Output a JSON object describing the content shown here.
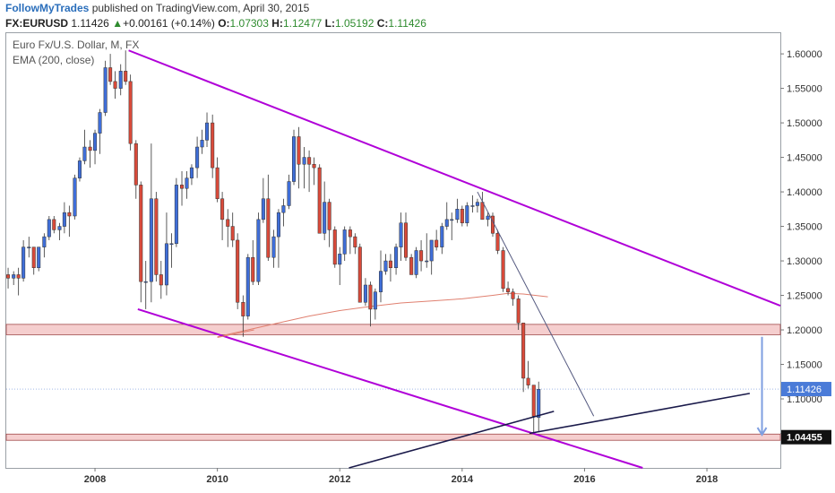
{
  "header": {
    "brand": "FollowMyTrades",
    "published": " published on TradingView.com, April 30, 2015",
    "symbol": "FX:EURUSD",
    "last": "1.11426",
    "change_arrow": "▲",
    "change": "+0.00161 (+0.14%)",
    "o_label": "O:",
    "o_val": "1.07303",
    "h_label": "H:",
    "h_val": "1.12477",
    "l_label": "L:",
    "l_val": "1.05192",
    "c_label": "C:",
    "c_val": "1.11426"
  },
  "legend": {
    "instrument": "Euro Fx/U.S. Dollar, M, FX",
    "indicator": "EMA (200, close)"
  },
  "colors": {
    "up": "#3f6ed8",
    "down": "#d94a3a",
    "ema": "#e08070",
    "channel": "#b000d8",
    "trend": "#1a1a4a",
    "zone": "#f3c6c6",
    "arrow": "#7f9fe0"
  },
  "chart_data": {
    "type": "candlestick",
    "timeframe": "monthly",
    "xlabels": [
      "2008",
      "2010",
      "2012",
      "2014",
      "2016",
      "2018"
    ],
    "yticks": [
      "1.60000",
      "1.55000",
      "1.50000",
      "1.45000",
      "1.40000",
      "1.35000",
      "1.30000",
      "1.25000",
      "1.20000",
      "1.15000",
      "1.10000",
      "1.05000"
    ],
    "ylim": [
      1.0,
      1.63
    ],
    "xlim": [
      2006.55,
      2019.2
    ],
    "last_price_label": "1.11426",
    "last_price": 1.11426,
    "marker_label": "1.04455",
    "marker_price": 1.04455,
    "candles": [
      {
        "t": 2006.58,
        "o": 1.28,
        "h": 1.29,
        "l": 1.26,
        "c": 1.275
      },
      {
        "t": 2006.67,
        "o": 1.275,
        "h": 1.285,
        "l": 1.265,
        "c": 1.28
      },
      {
        "t": 2006.75,
        "o": 1.28,
        "h": 1.29,
        "l": 1.25,
        "c": 1.275
      },
      {
        "t": 2006.83,
        "o": 1.275,
        "h": 1.33,
        "l": 1.27,
        "c": 1.32
      },
      {
        "t": 2006.92,
        "o": 1.32,
        "h": 1.335,
        "l": 1.305,
        "c": 1.32
      },
      {
        "t": 2007.0,
        "o": 1.32,
        "h": 1.32,
        "l": 1.28,
        "c": 1.29
      },
      {
        "t": 2007.08,
        "o": 1.29,
        "h": 1.32,
        "l": 1.285,
        "c": 1.32
      },
      {
        "t": 2007.17,
        "o": 1.32,
        "h": 1.34,
        "l": 1.305,
        "c": 1.335
      },
      {
        "t": 2007.25,
        "o": 1.335,
        "h": 1.365,
        "l": 1.33,
        "c": 1.36
      },
      {
        "t": 2007.33,
        "o": 1.36,
        "h": 1.365,
        "l": 1.34,
        "c": 1.345
      },
      {
        "t": 2007.42,
        "o": 1.345,
        "h": 1.355,
        "l": 1.33,
        "c": 1.35
      },
      {
        "t": 2007.5,
        "o": 1.35,
        "h": 1.385,
        "l": 1.34,
        "c": 1.37
      },
      {
        "t": 2007.58,
        "o": 1.37,
        "h": 1.38,
        "l": 1.335,
        "c": 1.365
      },
      {
        "t": 2007.67,
        "o": 1.365,
        "h": 1.425,
        "l": 1.36,
        "c": 1.42
      },
      {
        "t": 2007.75,
        "o": 1.42,
        "h": 1.45,
        "l": 1.415,
        "c": 1.445
      },
      {
        "t": 2007.83,
        "o": 1.445,
        "h": 1.49,
        "l": 1.44,
        "c": 1.465
      },
      {
        "t": 2007.92,
        "o": 1.465,
        "h": 1.475,
        "l": 1.435,
        "c": 1.46
      },
      {
        "t": 2008.0,
        "o": 1.46,
        "h": 1.49,
        "l": 1.44,
        "c": 1.485
      },
      {
        "t": 2008.08,
        "o": 1.485,
        "h": 1.52,
        "l": 1.455,
        "c": 1.515
      },
      {
        "t": 2008.17,
        "o": 1.515,
        "h": 1.59,
        "l": 1.51,
        "c": 1.58
      },
      {
        "t": 2008.25,
        "o": 1.58,
        "h": 1.6,
        "l": 1.555,
        "c": 1.56
      },
      {
        "t": 2008.33,
        "o": 1.56,
        "h": 1.575,
        "l": 1.535,
        "c": 1.55
      },
      {
        "t": 2008.42,
        "o": 1.55,
        "h": 1.585,
        "l": 1.54,
        "c": 1.575
      },
      {
        "t": 2008.5,
        "o": 1.575,
        "h": 1.605,
        "l": 1.555,
        "c": 1.56
      },
      {
        "t": 2008.58,
        "o": 1.56,
        "h": 1.57,
        "l": 1.46,
        "c": 1.47
      },
      {
        "t": 2008.67,
        "o": 1.47,
        "h": 1.475,
        "l": 1.39,
        "c": 1.41
      },
      {
        "t": 2008.75,
        "o": 1.41,
        "h": 1.415,
        "l": 1.24,
        "c": 1.27
      },
      {
        "t": 2008.83,
        "o": 1.27,
        "h": 1.3,
        "l": 1.23,
        "c": 1.27
      },
      {
        "t": 2008.92,
        "o": 1.27,
        "h": 1.47,
        "l": 1.24,
        "c": 1.39
      },
      {
        "t": 2009.0,
        "o": 1.39,
        "h": 1.4,
        "l": 1.27,
        "c": 1.28
      },
      {
        "t": 2009.08,
        "o": 1.28,
        "h": 1.3,
        "l": 1.245,
        "c": 1.265
      },
      {
        "t": 2009.17,
        "o": 1.265,
        "h": 1.37,
        "l": 1.25,
        "c": 1.325
      },
      {
        "t": 2009.25,
        "o": 1.325,
        "h": 1.34,
        "l": 1.29,
        "c": 1.325
      },
      {
        "t": 2009.33,
        "o": 1.325,
        "h": 1.42,
        "l": 1.32,
        "c": 1.41
      },
      {
        "t": 2009.42,
        "o": 1.41,
        "h": 1.43,
        "l": 1.38,
        "c": 1.405
      },
      {
        "t": 2009.5,
        "o": 1.405,
        "h": 1.43,
        "l": 1.39,
        "c": 1.42
      },
      {
        "t": 2009.58,
        "o": 1.42,
        "h": 1.44,
        "l": 1.41,
        "c": 1.435
      },
      {
        "t": 2009.67,
        "o": 1.435,
        "h": 1.48,
        "l": 1.42,
        "c": 1.465
      },
      {
        "t": 2009.75,
        "o": 1.465,
        "h": 1.49,
        "l": 1.455,
        "c": 1.475
      },
      {
        "t": 2009.83,
        "o": 1.475,
        "h": 1.515,
        "l": 1.465,
        "c": 1.5
      },
      {
        "t": 2009.92,
        "o": 1.5,
        "h": 1.512,
        "l": 1.42,
        "c": 1.435
      },
      {
        "t": 2010.0,
        "o": 1.435,
        "h": 1.45,
        "l": 1.385,
        "c": 1.39
      },
      {
        "t": 2010.08,
        "o": 1.39,
        "h": 1.4,
        "l": 1.33,
        "c": 1.36
      },
      {
        "t": 2010.17,
        "o": 1.36,
        "h": 1.375,
        "l": 1.32,
        "c": 1.35
      },
      {
        "t": 2010.25,
        "o": 1.35,
        "h": 1.37,
        "l": 1.32,
        "c": 1.33
      },
      {
        "t": 2010.33,
        "o": 1.33,
        "h": 1.34,
        "l": 1.23,
        "c": 1.24
      },
      {
        "t": 2010.42,
        "o": 1.24,
        "h": 1.25,
        "l": 1.19,
        "c": 1.22
      },
      {
        "t": 2010.5,
        "o": 1.22,
        "h": 1.31,
        "l": 1.215,
        "c": 1.305
      },
      {
        "t": 2010.58,
        "o": 1.305,
        "h": 1.33,
        "l": 1.265,
        "c": 1.27
      },
      {
        "t": 2010.67,
        "o": 1.27,
        "h": 1.37,
        "l": 1.265,
        "c": 1.36
      },
      {
        "t": 2010.75,
        "o": 1.36,
        "h": 1.42,
        "l": 1.355,
        "c": 1.39
      },
      {
        "t": 2010.83,
        "o": 1.39,
        "h": 1.425,
        "l": 1.3,
        "c": 1.305
      },
      {
        "t": 2010.92,
        "o": 1.305,
        "h": 1.345,
        "l": 1.29,
        "c": 1.335
      },
      {
        "t": 2011.0,
        "o": 1.335,
        "h": 1.375,
        "l": 1.29,
        "c": 1.37
      },
      {
        "t": 2011.08,
        "o": 1.37,
        "h": 1.39,
        "l": 1.35,
        "c": 1.38
      },
      {
        "t": 2011.17,
        "o": 1.38,
        "h": 1.425,
        "l": 1.375,
        "c": 1.415
      },
      {
        "t": 2011.25,
        "o": 1.415,
        "h": 1.49,
        "l": 1.41,
        "c": 1.48
      },
      {
        "t": 2011.33,
        "o": 1.48,
        "h": 1.494,
        "l": 1.405,
        "c": 1.44
      },
      {
        "t": 2011.42,
        "o": 1.44,
        "h": 1.465,
        "l": 1.405,
        "c": 1.45
      },
      {
        "t": 2011.5,
        "o": 1.45,
        "h": 1.46,
        "l": 1.4,
        "c": 1.44
      },
      {
        "t": 2011.58,
        "o": 1.44,
        "h": 1.45,
        "l": 1.41,
        "c": 1.435
      },
      {
        "t": 2011.67,
        "o": 1.435,
        "h": 1.44,
        "l": 1.34,
        "c": 1.34
      },
      {
        "t": 2011.75,
        "o": 1.34,
        "h": 1.415,
        "l": 1.33,
        "c": 1.385
      },
      {
        "t": 2011.83,
        "o": 1.385,
        "h": 1.39,
        "l": 1.32,
        "c": 1.345
      },
      {
        "t": 2011.92,
        "o": 1.345,
        "h": 1.35,
        "l": 1.29,
        "c": 1.295
      },
      {
        "t": 2012.0,
        "o": 1.295,
        "h": 1.32,
        "l": 1.265,
        "c": 1.31
      },
      {
        "t": 2012.08,
        "o": 1.31,
        "h": 1.35,
        "l": 1.3,
        "c": 1.345
      },
      {
        "t": 2012.17,
        "o": 1.345,
        "h": 1.35,
        "l": 1.31,
        "c": 1.335
      },
      {
        "t": 2012.25,
        "o": 1.335,
        "h": 1.34,
        "l": 1.31,
        "c": 1.32
      },
      {
        "t": 2012.33,
        "o": 1.32,
        "h": 1.325,
        "l": 1.24,
        "c": 1.24
      },
      {
        "t": 2012.42,
        "o": 1.24,
        "h": 1.275,
        "l": 1.235,
        "c": 1.265
      },
      {
        "t": 2012.5,
        "o": 1.265,
        "h": 1.27,
        "l": 1.205,
        "c": 1.23
      },
      {
        "t": 2012.58,
        "o": 1.23,
        "h": 1.26,
        "l": 1.215,
        "c": 1.255
      },
      {
        "t": 2012.67,
        "o": 1.255,
        "h": 1.315,
        "l": 1.24,
        "c": 1.285
      },
      {
        "t": 2012.75,
        "o": 1.285,
        "h": 1.31,
        "l": 1.28,
        "c": 1.3
      },
      {
        "t": 2012.83,
        "o": 1.3,
        "h": 1.31,
        "l": 1.27,
        "c": 1.29
      },
      {
        "t": 2012.92,
        "o": 1.29,
        "h": 1.325,
        "l": 1.28,
        "c": 1.32
      },
      {
        "t": 2013.0,
        "o": 1.32,
        "h": 1.37,
        "l": 1.3,
        "c": 1.355
      },
      {
        "t": 2013.08,
        "o": 1.355,
        "h": 1.37,
        "l": 1.3,
        "c": 1.305
      },
      {
        "t": 2013.17,
        "o": 1.305,
        "h": 1.31,
        "l": 1.28,
        "c": 1.28
      },
      {
        "t": 2013.25,
        "o": 1.28,
        "h": 1.32,
        "l": 1.275,
        "c": 1.315
      },
      {
        "t": 2013.33,
        "o": 1.315,
        "h": 1.33,
        "l": 1.285,
        "c": 1.3
      },
      {
        "t": 2013.42,
        "o": 1.3,
        "h": 1.34,
        "l": 1.29,
        "c": 1.3
      },
      {
        "t": 2013.5,
        "o": 1.3,
        "h": 1.33,
        "l": 1.28,
        "c": 1.33
      },
      {
        "t": 2013.58,
        "o": 1.33,
        "h": 1.345,
        "l": 1.315,
        "c": 1.32
      },
      {
        "t": 2013.67,
        "o": 1.32,
        "h": 1.355,
        "l": 1.31,
        "c": 1.35
      },
      {
        "t": 2013.75,
        "o": 1.35,
        "h": 1.385,
        "l": 1.345,
        "c": 1.36
      },
      {
        "t": 2013.83,
        "o": 1.36,
        "h": 1.37,
        "l": 1.33,
        "c": 1.36
      },
      {
        "t": 2013.92,
        "o": 1.36,
        "h": 1.39,
        "l": 1.355,
        "c": 1.375
      },
      {
        "t": 2014.0,
        "o": 1.375,
        "h": 1.38,
        "l": 1.35,
        "c": 1.355
      },
      {
        "t": 2014.08,
        "o": 1.355,
        "h": 1.385,
        "l": 1.35,
        "c": 1.38
      },
      {
        "t": 2014.17,
        "o": 1.38,
        "h": 1.395,
        "l": 1.37,
        "c": 1.38
      },
      {
        "t": 2014.25,
        "o": 1.38,
        "h": 1.39,
        "l": 1.37,
        "c": 1.385
      },
      {
        "t": 2014.33,
        "o": 1.385,
        "h": 1.4,
        "l": 1.36,
        "c": 1.36
      },
      {
        "t": 2014.42,
        "o": 1.36,
        "h": 1.37,
        "l": 1.35,
        "c": 1.365
      },
      {
        "t": 2014.5,
        "o": 1.365,
        "h": 1.37,
        "l": 1.335,
        "c": 1.34
      },
      {
        "t": 2014.58,
        "o": 1.34,
        "h": 1.345,
        "l": 1.31,
        "c": 1.315
      },
      {
        "t": 2014.67,
        "o": 1.315,
        "h": 1.32,
        "l": 1.255,
        "c": 1.26
      },
      {
        "t": 2014.75,
        "o": 1.26,
        "h": 1.27,
        "l": 1.25,
        "c": 1.255
      },
      {
        "t": 2014.83,
        "o": 1.255,
        "h": 1.26,
        "l": 1.235,
        "c": 1.245
      },
      {
        "t": 2014.92,
        "o": 1.245,
        "h": 1.25,
        "l": 1.2,
        "c": 1.21
      },
      {
        "t": 2015.0,
        "o": 1.21,
        "h": 1.21,
        "l": 1.11,
        "c": 1.13
      },
      {
        "t": 2015.08,
        "o": 1.13,
        "h": 1.155,
        "l": 1.115,
        "c": 1.12
      },
      {
        "t": 2015.17,
        "o": 1.12,
        "h": 1.12,
        "l": 1.05,
        "c": 1.075
      },
      {
        "t": 2015.25,
        "o": 1.073,
        "h": 1.125,
        "l": 1.052,
        "c": 1.114
      }
    ],
    "ema": [
      {
        "t": 2010.0,
        "v": 1.19
      },
      {
        "t": 2010.5,
        "v": 1.2
      },
      {
        "t": 2011.0,
        "v": 1.21
      },
      {
        "t": 2011.5,
        "v": 1.22
      },
      {
        "t": 2012.0,
        "v": 1.228
      },
      {
        "t": 2012.5,
        "v": 1.234
      },
      {
        "t": 2013.0,
        "v": 1.239
      },
      {
        "t": 2013.5,
        "v": 1.242
      },
      {
        "t": 2014.0,
        "v": 1.245
      },
      {
        "t": 2014.5,
        "v": 1.25
      },
      {
        "t": 2014.75,
        "v": 1.253
      },
      {
        "t": 2015.0,
        "v": 1.252
      },
      {
        "t": 2015.4,
        "v": 1.248
      }
    ],
    "support_zones": [
      {
        "low": 1.193,
        "high": 1.208
      },
      {
        "low": 1.04,
        "high": 1.049
      }
    ],
    "drawings": [
      {
        "type": "channel-line",
        "t1": 2008.55,
        "p1": 1.605,
        "t2": 2019.2,
        "p2": 1.235
      },
      {
        "type": "channel-line",
        "t1": 2008.7,
        "p1": 1.23,
        "t2": 2016.95,
        "p2": 1.0
      },
      {
        "type": "trend-line",
        "t1": 2014.25,
        "p1": 1.4,
        "t2": 2016.15,
        "p2": 1.075
      },
      {
        "type": "trend-line",
        "t1": 2015.1,
        "p1": 1.05,
        "t2": 2018.7,
        "p2": 1.108
      },
      {
        "type": "trend-line",
        "t1": 2012.15,
        "p1": 1.0,
        "t2": 2015.5,
        "p2": 1.082
      },
      {
        "type": "trend-line-short",
        "t1": 2010.0,
        "p1": 1.189,
        "t2": 2010.6,
        "p2": 1.2
      }
    ],
    "arrow": {
      "t": 2018.9,
      "from": 1.19,
      "to": 1.048
    }
  }
}
